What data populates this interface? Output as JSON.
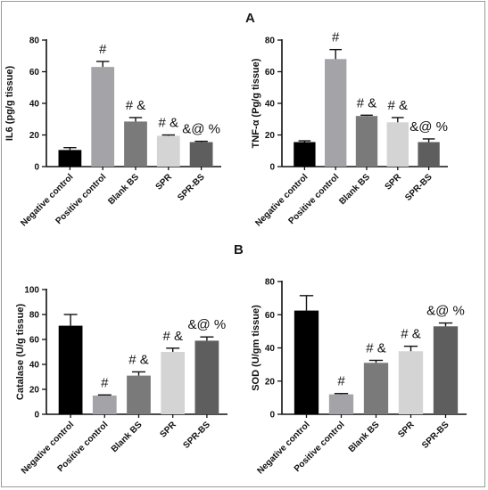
{
  "panels": {
    "a_label": "A",
    "b_label": "B"
  },
  "chart_data": [
    {
      "id": "il6",
      "type": "bar",
      "title": "",
      "xlabel": "",
      "ylabel": "IL6 (pg/g tissue)",
      "ylim": [
        0,
        80
      ],
      "yticks": [
        0,
        20,
        40,
        60,
        80
      ],
      "categories": [
        "Negative control",
        "Positive control",
        "Blank BS",
        "SPR",
        "SPR-BS"
      ],
      "values": [
        10.5,
        63,
        28.5,
        19.5,
        15.5
      ],
      "errors": [
        1.5,
        3.5,
        2.5,
        0.5,
        0.5
      ],
      "annotations": [
        "",
        "#",
        "# &",
        "# &",
        "&@ %"
      ],
      "colors": [
        "#000000",
        "#a3a3a8",
        "#7a7a7a",
        "#d4d4d4",
        "#5e5e5e"
      ],
      "grid": false
    },
    {
      "id": "tnf",
      "type": "bar",
      "title": "",
      "xlabel": "",
      "ylabel": "TNF-α (Pg/g tissue)",
      "ylim": [
        0,
        80
      ],
      "yticks": [
        0,
        20,
        40,
        60,
        80
      ],
      "categories": [
        "Negative control",
        "Positive control",
        "Blank BS",
        "SPR",
        "SPR-BS"
      ],
      "values": [
        15.5,
        68,
        32,
        28,
        15.5
      ],
      "errors": [
        0.8,
        6,
        0.5,
        3,
        2
      ],
      "annotations": [
        "",
        "#",
        "# &",
        "# &",
        "&@ %"
      ],
      "colors": [
        "#000000",
        "#a3a3a8",
        "#7a7a7a",
        "#d4d4d4",
        "#5e5e5e"
      ],
      "grid": false
    },
    {
      "id": "catalase",
      "type": "bar",
      "title": "",
      "xlabel": "",
      "ylabel": "Catalase (U/g tissue)",
      "ylim": [
        0,
        100
      ],
      "yticks": [
        0,
        20,
        40,
        60,
        80,
        100
      ],
      "categories": [
        "Negative control",
        "Positive control",
        "Blank BS",
        "SPR",
        "SPR-BS"
      ],
      "values": [
        71,
        15,
        31,
        50,
        59
      ],
      "errors": [
        9,
        0.5,
        3,
        3,
        3
      ],
      "annotations": [
        "",
        "#",
        "# &",
        "# &",
        "&@ %"
      ],
      "colors": [
        "#000000",
        "#a3a3a8",
        "#7a7a7a",
        "#d4d4d4",
        "#5e5e5e"
      ],
      "grid": false
    },
    {
      "id": "sod",
      "type": "bar",
      "title": "",
      "xlabel": "",
      "ylabel": "SOD (U/gm tissue)",
      "ylim": [
        0,
        80
      ],
      "yticks": [
        0,
        20,
        40,
        60,
        80
      ],
      "categories": [
        "Negative control",
        "Positive control",
        "Blank BS",
        "SPR",
        "SPR-BS"
      ],
      "values": [
        62.5,
        12,
        31,
        38,
        53
      ],
      "errors": [
        9,
        0.5,
        1.5,
        3,
        2
      ],
      "annotations": [
        "",
        "#",
        "# &",
        "# &",
        "&@ %"
      ],
      "colors": [
        "#000000",
        "#a3a3a8",
        "#7a7a7a",
        "#d4d4d4",
        "#5e5e5e"
      ],
      "grid": false
    }
  ]
}
